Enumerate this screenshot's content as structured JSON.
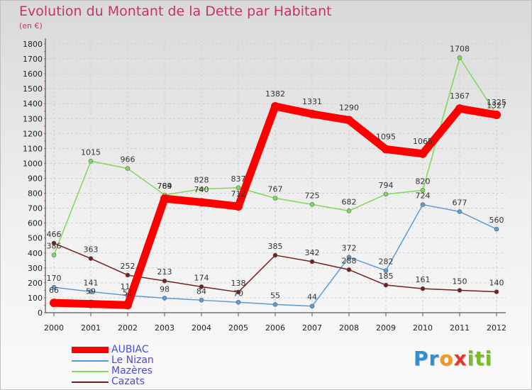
{
  "title": "Evolution du Montant de la Dette par Habitant",
  "subtitle": "(en €)",
  "logo": {
    "letters": [
      "P",
      "r",
      "o",
      "x",
      "i",
      "t",
      "i"
    ],
    "colors": [
      "#2f8fd1",
      "#2f8fd1",
      "#f29a1f",
      "#e23a2c",
      "#7dbb2e",
      "#7dbb2e",
      "#7dbb2e"
    ]
  },
  "chart_data": {
    "type": "line",
    "x": [
      "2000",
      "2001",
      "2002",
      "2003",
      "2004",
      "2005",
      "2006",
      "2007",
      "2008",
      "2009",
      "2010",
      "2011",
      "2012"
    ],
    "ylim": [
      0,
      1800
    ],
    "yticks": [
      0,
      100,
      200,
      300,
      400,
      500,
      600,
      700,
      800,
      900,
      1000,
      1100,
      1200,
      1300,
      1400,
      1500,
      1600,
      1700,
      1800
    ],
    "grid": true,
    "legend_position": "bottom-left",
    "series": [
      {
        "name": "Le Nizan",
        "color": "#5b9bd5",
        "values": [
          170,
          141,
          115,
          98,
          84,
          70,
          55,
          44,
          372,
          282,
          724,
          677,
          560
        ]
      },
      {
        "name": "Mazères",
        "color": "#7ed957",
        "values": [
          386,
          1015,
          966,
          789,
          828,
          837,
          767,
          725,
          682,
          794,
          820,
          1708,
          1327
        ]
      },
      {
        "name": "Cazats",
        "color": "#722020",
        "values": [
          466,
          363,
          252,
          213,
          174,
          138,
          385,
          342,
          288,
          185,
          161,
          150,
          140
        ]
      },
      {
        "name": "AUBIAC",
        "color": "#ff0000",
        "values": [
          66,
          59,
          51,
          764,
          740,
          712,
          1382,
          1331,
          1290,
          1095,
          1065,
          1367,
          1325
        ]
      }
    ],
    "legend_order": [
      "AUBIAC",
      "Le Nizan",
      "Mazères",
      "Cazats"
    ]
  }
}
